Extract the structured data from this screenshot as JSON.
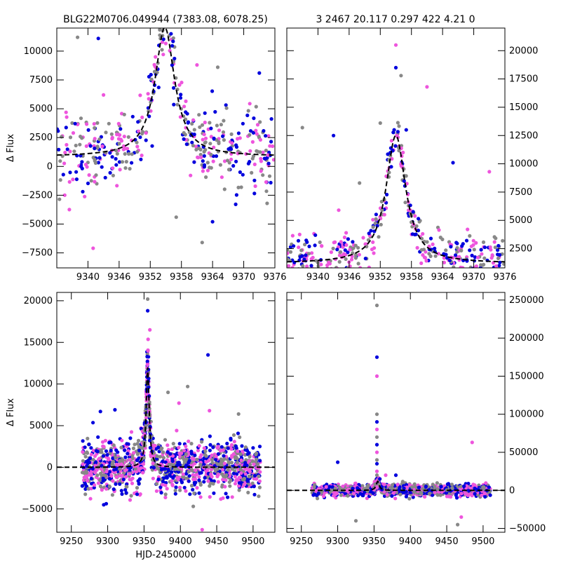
{
  "titles": {
    "left": "BLG22M0706.049944 (7383.08, 6078.25)",
    "right": "3 2467 20.117 0.297 422  4.21     0"
  },
  "colors": {
    "gray": "#888888",
    "blue": "#0000dd",
    "pink": "#ee55dd",
    "model": "#000000"
  },
  "chart_data": [
    {
      "name": "top-left",
      "type": "scatter",
      "xlim": [
        9334,
        9376
      ],
      "ylim": [
        -8800,
        12000
      ],
      "xticks": [
        9340,
        9346,
        9352,
        9358,
        9364,
        9370,
        9376
      ],
      "yticks": [
        -7500,
        -5000,
        -2500,
        0,
        2500,
        5000,
        7500,
        10000
      ],
      "ylabel": "Δ Flux",
      "xlabel": "",
      "model": {
        "t0": 9354.8,
        "base": 850,
        "peak": 11200,
        "width": 2.3
      },
      "scatter_amp": 1200,
      "tail_ratio": 0.15,
      "outliers": [
        [
          9338,
          11200
        ],
        [
          9342,
          11100
        ],
        [
          9343,
          6200
        ],
        [
          9347,
          4500
        ],
        [
          9356,
          11500
        ],
        [
          9361,
          8800
        ],
        [
          9365,
          8600
        ],
        [
          9373,
          8100
        ],
        [
          9341,
          -7100
        ],
        [
          9362,
          -6600
        ],
        [
          9364,
          -4800
        ],
        [
          9353,
          9500
        ],
        [
          9357,
          -4400
        ]
      ],
      "tick_direction": "in"
    },
    {
      "name": "top-right",
      "type": "scatter",
      "xlim": [
        9334,
        9376
      ],
      "ylim": [
        800,
        22000
      ],
      "xticks": [
        9340,
        9346,
        9352,
        9358,
        9364,
        9370,
        9376
      ],
      "yticks": [
        2500,
        5000,
        7500,
        10000,
        12500,
        15000,
        17500,
        20000
      ],
      "ylabel": "",
      "xlabel": "",
      "model": {
        "t0": 9355.0,
        "base": 1200,
        "peak": 11300,
        "width": 2.3
      },
      "scatter_amp": 800,
      "tail_ratio": 0.15,
      "outliers": [
        [
          9337,
          13200
        ],
        [
          9343,
          12500
        ],
        [
          9355,
          20500
        ],
        [
          9356,
          17800
        ],
        [
          9355,
          18500
        ],
        [
          9361,
          16800
        ],
        [
          9352,
          13600
        ],
        [
          9357,
          13000
        ],
        [
          9373,
          9300
        ],
        [
          9348,
          8300
        ],
        [
          9366,
          10100
        ],
        [
          9344,
          5900
        ]
      ],
      "tick_direction": "in"
    },
    {
      "name": "bottom-left",
      "type": "scatter",
      "xlim": [
        9230,
        9530
      ],
      "ylim": [
        -7800,
        21000
      ],
      "xticks": [
        9250,
        9300,
        9350,
        9400,
        9450,
        9500
      ],
      "yticks": [
        -5000,
        0,
        5000,
        10000,
        15000,
        20000
      ],
      "ylabel": "Δ Flux",
      "xlabel": "HJD-2450000",
      "model": {
        "t0": 9355,
        "base": 0,
        "peak": 12000,
        "width": 2.5
      },
      "scatter_amp": 1500,
      "tail_ratio": 0.18,
      "outliers": [
        [
          9355,
          20200
        ],
        [
          9355,
          18800
        ],
        [
          9358,
          16500
        ],
        [
          9410,
          9700
        ],
        [
          9438,
          13500
        ],
        [
          9440,
          6800
        ],
        [
          9480,
          6400
        ],
        [
          9290,
          6700
        ],
        [
          9398,
          7700
        ],
        [
          9383,
          9000
        ],
        [
          9310,
          6900
        ],
        [
          9430,
          -7500
        ]
      ],
      "tick_direction": "in"
    },
    {
      "name": "bottom-right",
      "type": "scatter",
      "xlim": [
        9230,
        9530
      ],
      "ylim": [
        -55000,
        260000
      ],
      "xticks": [
        9250,
        9300,
        9350,
        9400,
        9450,
        9500
      ],
      "yticks": [
        -50000,
        0,
        50000,
        100000,
        150000,
        200000,
        250000
      ],
      "ylabel": "",
      "xlabel": "",
      "model": {
        "t0": 9355,
        "base": 0,
        "peak": 12000,
        "width": 2.5
      },
      "scatter_amp": 3500,
      "tail_ratio": 0.18,
      "outliers": [
        [
          9354,
          243000
        ],
        [
          9354,
          175000
        ],
        [
          9354,
          150000
        ],
        [
          9354,
          100000
        ],
        [
          9354,
          90000
        ],
        [
          9354,
          80000
        ],
        [
          9354,
          70000
        ],
        [
          9354,
          60000
        ],
        [
          9354,
          50000
        ],
        [
          9354,
          40000
        ],
        [
          9354,
          35000
        ],
        [
          9354,
          25000
        ],
        [
          9354,
          20000
        ],
        [
          9300,
          37000
        ],
        [
          9485,
          63000
        ],
        [
          9325,
          -40000
        ],
        [
          9380,
          20000
        ],
        [
          9470,
          -35000
        ],
        [
          9465,
          -45000
        ],
        [
          9358,
          15000
        ],
        [
          9366,
          20000
        ]
      ],
      "tick_direction": "in"
    }
  ]
}
